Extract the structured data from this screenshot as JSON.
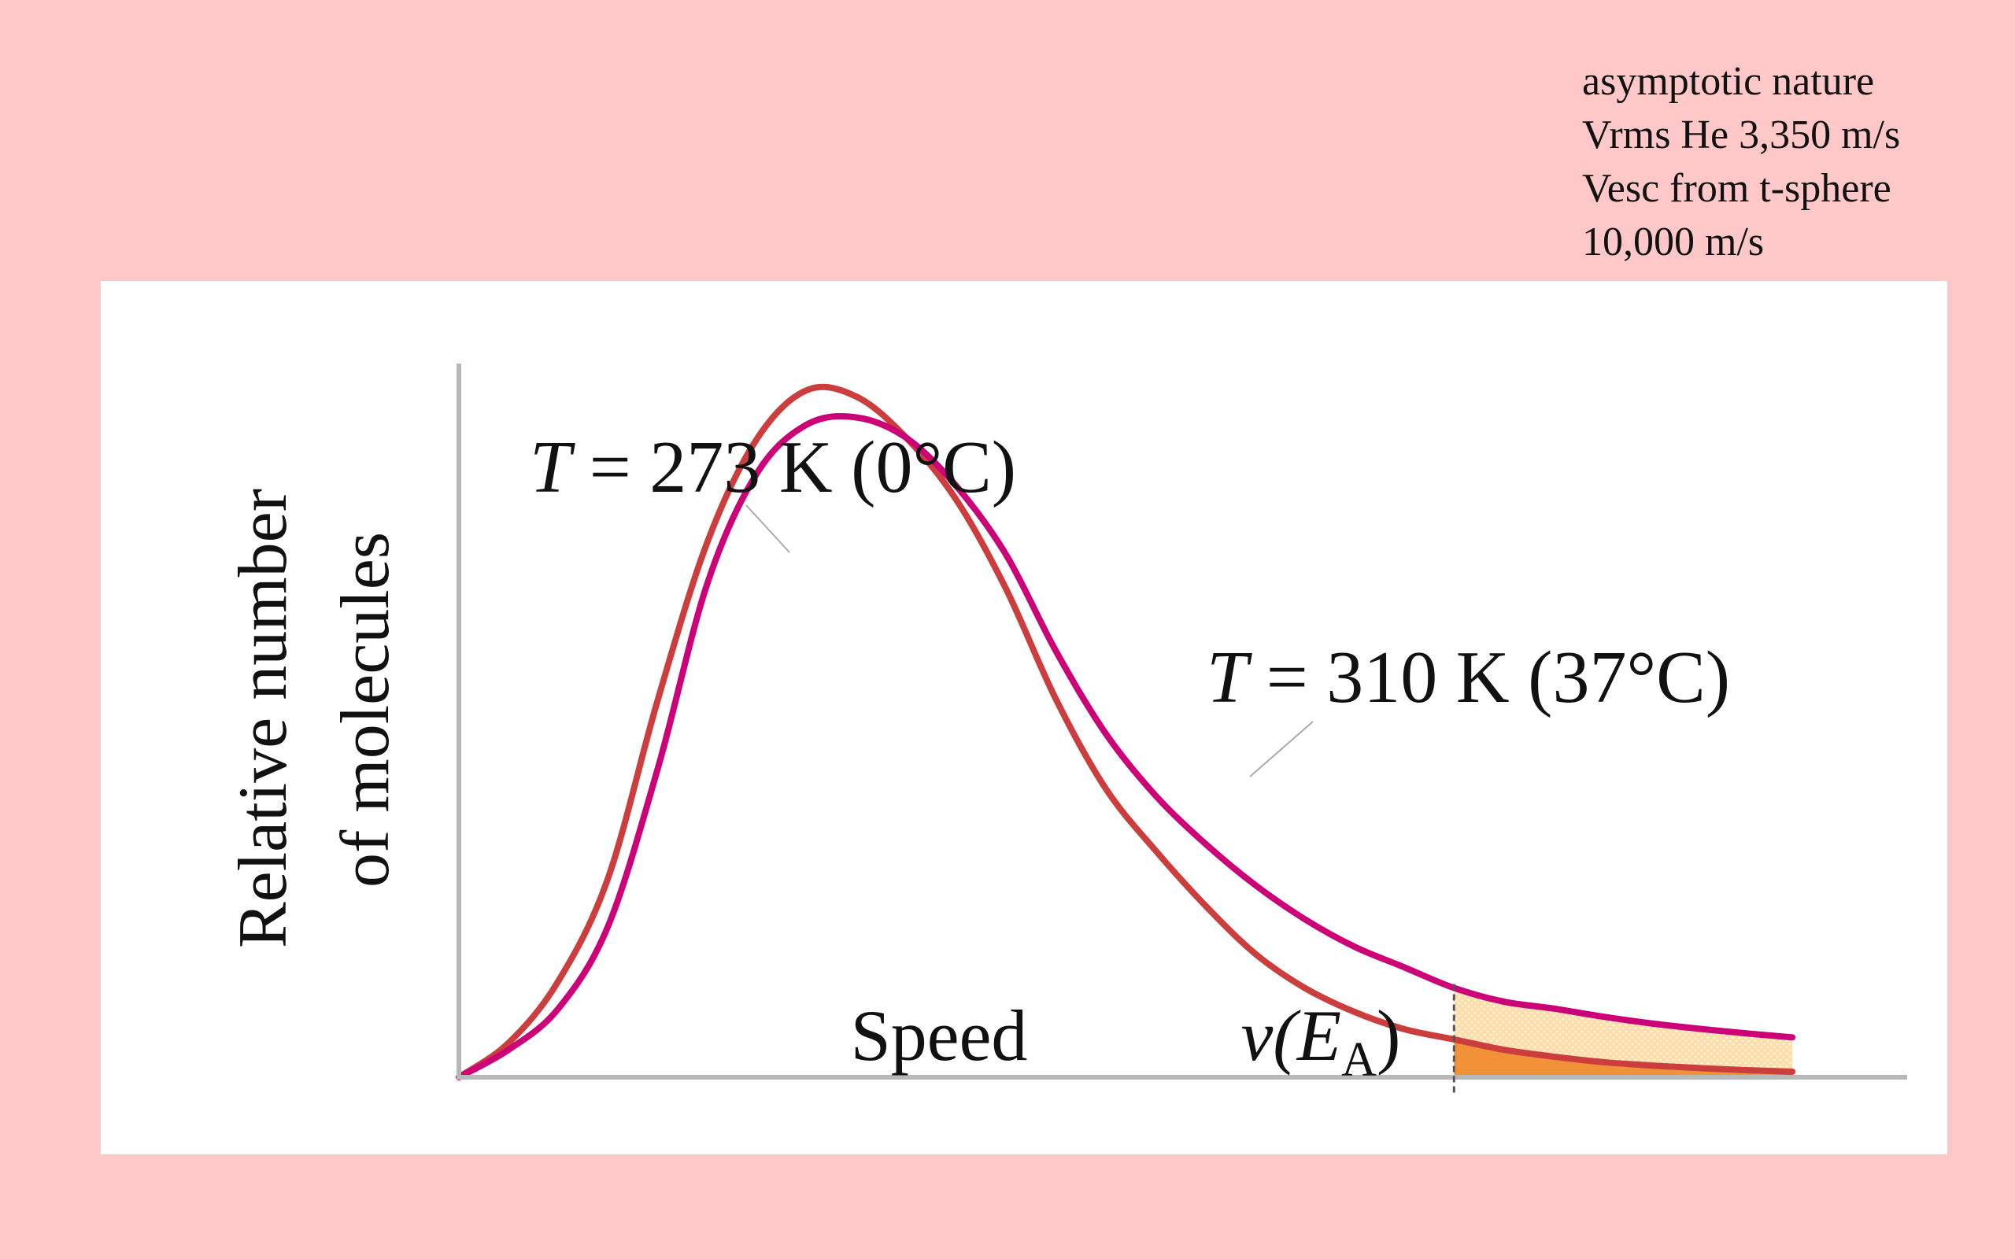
{
  "notes": [
    "asymptotic nature",
    "Vrms He 3,350 m/s",
    "Vesc from t-sphere",
    "10,000 m/s"
  ],
  "colors": {
    "background": "#ffc8c8",
    "panel": "#ffffff",
    "axis": "#b8b8b8",
    "curve_273": "#cc3d3d",
    "curve_310": "#cc0077",
    "shade_310": "#ffdca8",
    "shade_273": "#f29238"
  },
  "chart_data": {
    "type": "line",
    "xlabel": "Speed",
    "ylabel": [
      "Relative number",
      "of molecules"
    ],
    "threshold_label": "v(E",
    "threshold_subscript": "A",
    "threshold_label_close": ")",
    "xlim": [
      0,
      1.4
    ],
    "ylim": [
      0,
      1.05
    ],
    "threshold_x": 1.0,
    "series": [
      {
        "name": "T = 273 K (0°C)",
        "temperature_text": "T",
        "rest_text": " = 273 K (0°C)",
        "color_key": "curve_273",
        "x": [
          0,
          0.05,
          0.1,
          0.15,
          0.2,
          0.25,
          0.3,
          0.35,
          0.4,
          0.45,
          0.5,
          0.55,
          0.6,
          0.65,
          0.7,
          0.75,
          0.8,
          0.85,
          0.9,
          0.95,
          1.0,
          1.05,
          1.1,
          1.15,
          1.2,
          1.25,
          1.3,
          1.34
        ],
        "y": [
          0,
          0.05,
          0.14,
          0.29,
          0.55,
          0.78,
          0.93,
          1.0,
          0.99,
          0.93,
          0.84,
          0.71,
          0.55,
          0.42,
          0.33,
          0.25,
          0.18,
          0.13,
          0.095,
          0.07,
          0.055,
          0.04,
          0.03,
          0.022,
          0.017,
          0.013,
          0.01,
          0.008
        ]
      },
      {
        "name": "T = 310 K (37°C)",
        "temperature_text": "T",
        "rest_text": " = 310 K (37°C)",
        "color_key": "curve_310",
        "x": [
          0,
          0.05,
          0.1,
          0.15,
          0.2,
          0.25,
          0.3,
          0.35,
          0.4,
          0.45,
          0.5,
          0.55,
          0.6,
          0.65,
          0.7,
          0.75,
          0.8,
          0.85,
          0.9,
          0.95,
          1.0,
          1.05,
          1.1,
          1.15,
          1.2,
          1.25,
          1.3,
          1.34
        ],
        "y": [
          0,
          0.04,
          0.1,
          0.22,
          0.45,
          0.72,
          0.88,
          0.95,
          0.96,
          0.93,
          0.86,
          0.76,
          0.62,
          0.5,
          0.41,
          0.34,
          0.28,
          0.23,
          0.19,
          0.16,
          0.13,
          0.11,
          0.1,
          0.088,
          0.078,
          0.07,
          0.063,
          0.058
        ]
      }
    ]
  }
}
